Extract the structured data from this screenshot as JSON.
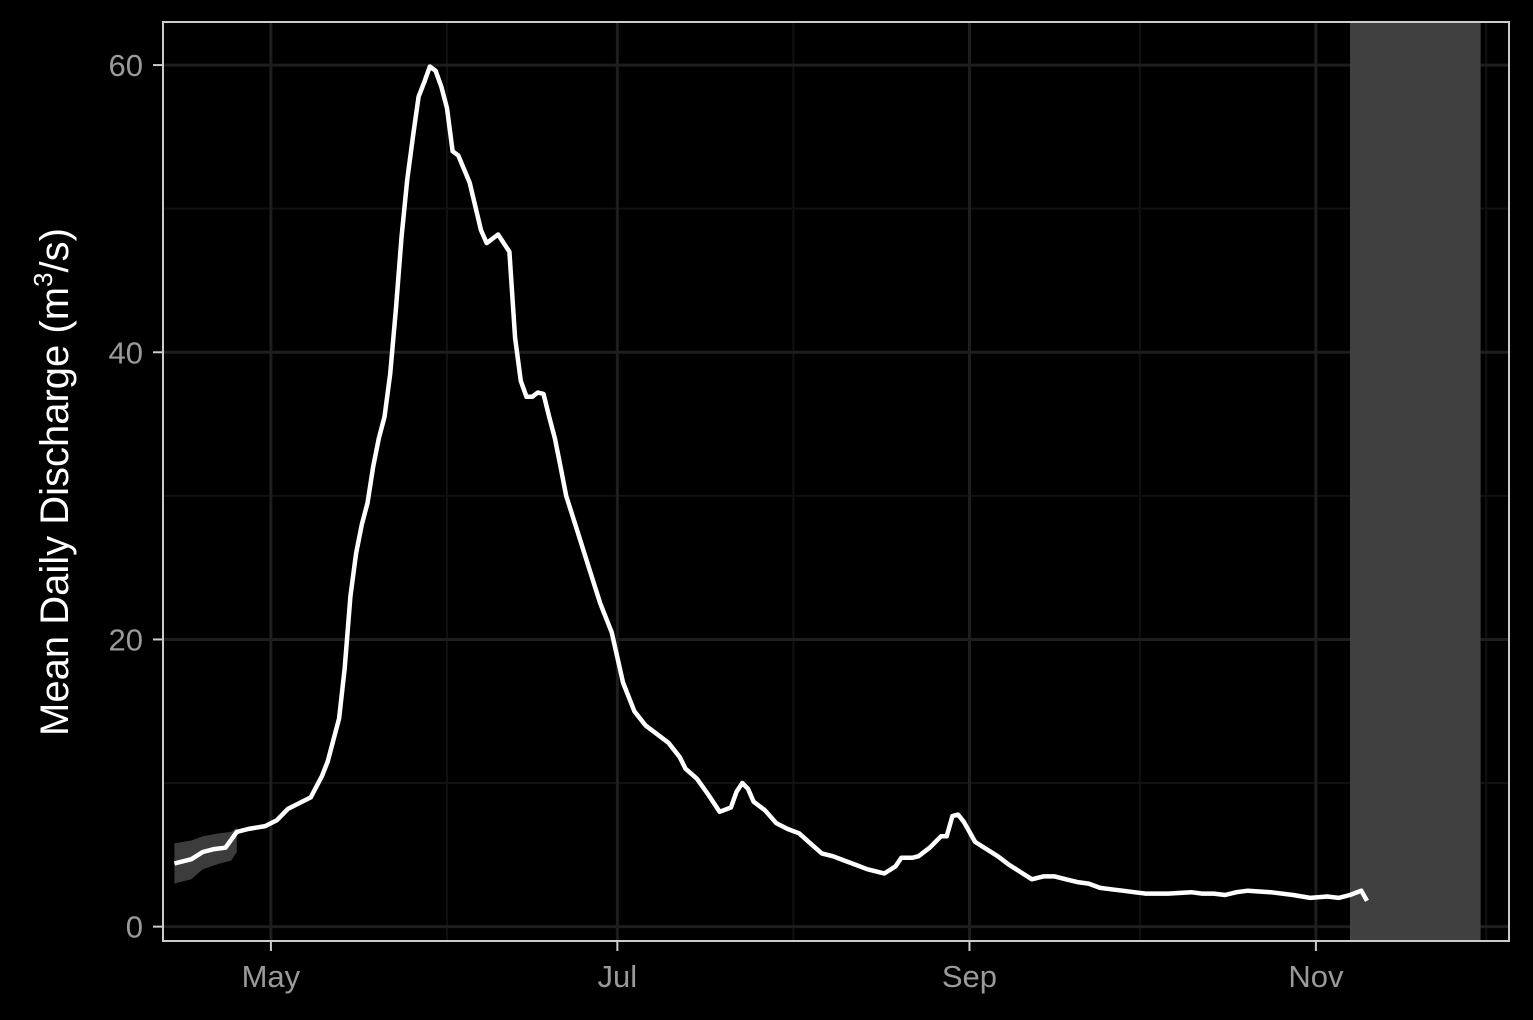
{
  "chart_data": {
    "type": "line",
    "title": "",
    "xlabel": "",
    "ylabel": "Mean Daily Discharge (m³/s)",
    "ylabel_parts": {
      "before": "Mean Daily Discharge (m",
      "sup": "3",
      "after": "/s)"
    },
    "x_axis": {
      "type": "date",
      "range": [
        "2024-04-12",
        "2024-12-05"
      ],
      "ticks_major": [
        {
          "date": "2024-05-01",
          "label": "May"
        },
        {
          "date": "2024-07-01",
          "label": "Jul"
        },
        {
          "date": "2024-09-01",
          "label": "Sep"
        },
        {
          "date": "2024-11-01",
          "label": "Nov"
        }
      ],
      "ticks_minor": [
        "2024-04-01",
        "2024-06-01",
        "2024-08-01",
        "2024-10-01",
        "2024-12-01"
      ]
    },
    "y_axis": {
      "range": [
        -1,
        63
      ],
      "ticks_major": [
        0,
        20,
        40,
        60
      ],
      "ticks_minor": [
        10,
        30,
        50
      ]
    },
    "grid": true,
    "legend": "none",
    "colors": {
      "background": "#000000",
      "panel_border": "#cccccc",
      "grid_major": "#1e1e1e",
      "grid_minor": "#111111",
      "line": "#ffffff",
      "ribbon": "#3c3c3c",
      "shaded_period": "#404040",
      "tick_text": "#9a9a9a",
      "title_text": "#ffffff"
    },
    "shaded_period": {
      "start": "2024-11-07",
      "end": "2024-11-30"
    },
    "ribbon": [
      {
        "date": "2024-04-14",
        "low": 3.0,
        "high": 5.8
      },
      {
        "date": "2024-04-17",
        "low": 3.3,
        "high": 6.0
      },
      {
        "date": "2024-04-19",
        "low": 4.0,
        "high": 6.3
      },
      {
        "date": "2024-04-22",
        "low": 4.4,
        "high": 6.5
      },
      {
        "date": "2024-04-24",
        "low": 4.6,
        "high": 6.6
      },
      {
        "date": "2024-04-25",
        "low": 5.2,
        "high": 6.9
      }
    ],
    "series": [
      {
        "points": [
          [
            "2024-04-14",
            4.4
          ],
          [
            "2024-04-17",
            4.7
          ],
          [
            "2024-04-19",
            5.2
          ],
          [
            "2024-04-21",
            5.4
          ],
          [
            "2024-04-23",
            5.5
          ],
          [
            "2024-04-25",
            6.6
          ],
          [
            "2024-04-27",
            6.8
          ],
          [
            "2024-04-30",
            7.0
          ],
          [
            "2024-05-02",
            7.4
          ],
          [
            "2024-05-04",
            8.2
          ],
          [
            "2024-05-06",
            8.6
          ],
          [
            "2024-05-08",
            9.0
          ],
          [
            "2024-05-10",
            10.5
          ],
          [
            "2024-05-11",
            11.5
          ],
          [
            "2024-05-13",
            14.5
          ],
          [
            "2024-05-14",
            18.0
          ],
          [
            "2024-05-15",
            23.0
          ],
          [
            "2024-05-16",
            26.0
          ],
          [
            "2024-05-17",
            28.0
          ],
          [
            "2024-05-18",
            29.5
          ],
          [
            "2024-05-19",
            32.0
          ],
          [
            "2024-05-20",
            34.0
          ],
          [
            "2024-05-21",
            35.5
          ],
          [
            "2024-05-22",
            38.5
          ],
          [
            "2024-05-23",
            43.0
          ],
          [
            "2024-05-24",
            48.0
          ],
          [
            "2024-05-25",
            52.0
          ],
          [
            "2024-05-26",
            55.0
          ],
          [
            "2024-05-27",
            57.8
          ],
          [
            "2024-05-28",
            58.8
          ],
          [
            "2024-05-29",
            59.9
          ],
          [
            "2024-05-30",
            59.6
          ],
          [
            "2024-05-31",
            58.5
          ],
          [
            "2024-06-01",
            57.0
          ],
          [
            "2024-06-02",
            54.0
          ],
          [
            "2024-06-03",
            53.7
          ],
          [
            "2024-06-05",
            51.8
          ],
          [
            "2024-06-07",
            48.5
          ],
          [
            "2024-06-08",
            47.6
          ],
          [
            "2024-06-10",
            48.2
          ],
          [
            "2024-06-12",
            47.0
          ],
          [
            "2024-06-13",
            41.0
          ],
          [
            "2024-06-14",
            38.0
          ],
          [
            "2024-06-15",
            36.9
          ],
          [
            "2024-06-16",
            36.9
          ],
          [
            "2024-06-17",
            37.2
          ],
          [
            "2024-06-18",
            37.1
          ],
          [
            "2024-06-19",
            35.5
          ],
          [
            "2024-06-20",
            34.0
          ],
          [
            "2024-06-21",
            32.0
          ],
          [
            "2024-06-22",
            30.0
          ],
          [
            "2024-06-24",
            27.5
          ],
          [
            "2024-06-26",
            25.0
          ],
          [
            "2024-06-28",
            22.5
          ],
          [
            "2024-06-30",
            20.5
          ],
          [
            "2024-07-02",
            17.0
          ],
          [
            "2024-07-04",
            15.0
          ],
          [
            "2024-07-06",
            14.0
          ],
          [
            "2024-07-08",
            13.4
          ],
          [
            "2024-07-10",
            12.8
          ],
          [
            "2024-07-12",
            11.8
          ],
          [
            "2024-07-13",
            11.0
          ],
          [
            "2024-07-15",
            10.3
          ],
          [
            "2024-07-17",
            9.2
          ],
          [
            "2024-07-19",
            8.0
          ],
          [
            "2024-07-21",
            8.3
          ],
          [
            "2024-07-22",
            9.4
          ],
          [
            "2024-07-23",
            10.0
          ],
          [
            "2024-07-24",
            9.6
          ],
          [
            "2024-07-25",
            8.7
          ],
          [
            "2024-07-27",
            8.1
          ],
          [
            "2024-07-29",
            7.2
          ],
          [
            "2024-07-31",
            6.8
          ],
          [
            "2024-08-02",
            6.5
          ],
          [
            "2024-08-04",
            5.8
          ],
          [
            "2024-08-06",
            5.1
          ],
          [
            "2024-08-08",
            4.9
          ],
          [
            "2024-08-10",
            4.6
          ],
          [
            "2024-08-12",
            4.3
          ],
          [
            "2024-08-14",
            4.0
          ],
          [
            "2024-08-16",
            3.8
          ],
          [
            "2024-08-17",
            3.7
          ],
          [
            "2024-08-19",
            4.2
          ],
          [
            "2024-08-20",
            4.8
          ],
          [
            "2024-08-22",
            4.8
          ],
          [
            "2024-08-23",
            4.9
          ],
          [
            "2024-08-25",
            5.5
          ],
          [
            "2024-08-26",
            5.9
          ],
          [
            "2024-08-27",
            6.3
          ],
          [
            "2024-08-28",
            6.3
          ],
          [
            "2024-08-29",
            7.7
          ],
          [
            "2024-08-30",
            7.8
          ],
          [
            "2024-08-31",
            7.3
          ],
          [
            "2024-09-01",
            6.6
          ],
          [
            "2024-09-02",
            5.9
          ],
          [
            "2024-09-04",
            5.4
          ],
          [
            "2024-09-06",
            4.9
          ],
          [
            "2024-09-08",
            4.3
          ],
          [
            "2024-09-10",
            3.8
          ],
          [
            "2024-09-12",
            3.3
          ],
          [
            "2024-09-14",
            3.5
          ],
          [
            "2024-09-16",
            3.5
          ],
          [
            "2024-09-18",
            3.3
          ],
          [
            "2024-09-20",
            3.1
          ],
          [
            "2024-09-22",
            3.0
          ],
          [
            "2024-09-24",
            2.7
          ],
          [
            "2024-09-26",
            2.6
          ],
          [
            "2024-09-28",
            2.5
          ],
          [
            "2024-09-30",
            2.4
          ],
          [
            "2024-10-02",
            2.3
          ],
          [
            "2024-10-06",
            2.3
          ],
          [
            "2024-10-10",
            2.4
          ],
          [
            "2024-10-12",
            2.3
          ],
          [
            "2024-10-14",
            2.3
          ],
          [
            "2024-10-16",
            2.2
          ],
          [
            "2024-10-18",
            2.4
          ],
          [
            "2024-10-20",
            2.5
          ],
          [
            "2024-10-24",
            2.4
          ],
          [
            "2024-10-28",
            2.2
          ],
          [
            "2024-10-31",
            2.0
          ],
          [
            "2024-11-03",
            2.1
          ],
          [
            "2024-11-05",
            2.0
          ],
          [
            "2024-11-07",
            2.2
          ],
          [
            "2024-11-09",
            2.5
          ],
          [
            "2024-11-10",
            1.8
          ]
        ]
      }
    ]
  }
}
